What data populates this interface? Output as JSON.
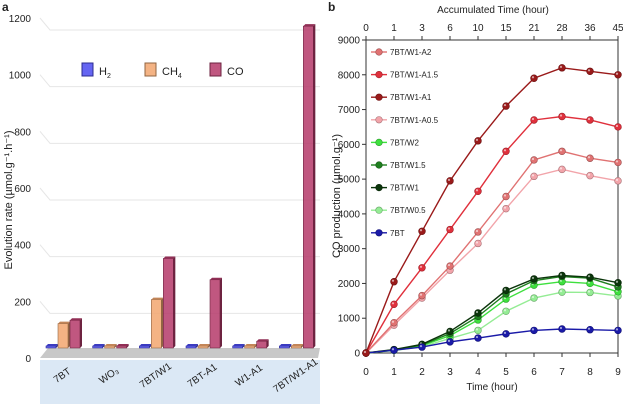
{
  "chart_data": [
    {
      "panel_label": "a",
      "type": "bar",
      "ylabel": "Evolution rate (µmol.g⁻¹.h⁻¹)",
      "ylim": [
        0,
        1200
      ],
      "yticks": [
        0,
        200,
        400,
        600,
        800,
        1000,
        1200
      ],
      "grid": true,
      "legend_placement": "top-left",
      "categories": [
        "7BT",
        "WO₃",
        "7BT/W1",
        "7BT-A1",
        "W1-A1",
        "7BT/W1-A1"
      ],
      "series": [
        {
          "name": "H₂",
          "label_base": "H",
          "label_sub": "2",
          "color": "#4a4af0",
          "values": [
            2,
            2,
            2,
            2,
            2,
            2
          ]
        },
        {
          "name": "CH₄",
          "label_base": "CH",
          "label_sub": "4",
          "color": "#f2a66e",
          "values": [
            100,
            2,
            185,
            15,
            8,
            4
          ]
        },
        {
          "name": "CO",
          "label_base": "CO",
          "label_sub": "",
          "color": "#b53a6a",
          "values": [
            112,
            3,
            330,
            255,
            38,
            1150
          ]
        }
      ]
    },
    {
      "panel_label": "b",
      "type": "line",
      "xlabel": "Time (hour)",
      "ylabel": "CO production (µmol.g⁻¹)",
      "top_xlabel": "Accumulated Time (hour)",
      "x": [
        0,
        1,
        2,
        3,
        4,
        5,
        6,
        7,
        8,
        9
      ],
      "top_xticks": [
        "0",
        "1",
        "3",
        "6",
        "10",
        "15",
        "21",
        "28",
        "36",
        "45"
      ],
      "xlim": [
        0,
        9
      ],
      "ylim": [
        0,
        9000
      ],
      "yticks": [
        0,
        1000,
        2000,
        3000,
        4000,
        5000,
        6000,
        7000,
        8000,
        9000
      ],
      "grid": false,
      "legend_placement": "top-left",
      "series": [
        {
          "name": "7BT/W1-A2",
          "color": "#e07272",
          "values": [
            0,
            870,
            1650,
            2500,
            3480,
            4500,
            5550,
            5800,
            5600,
            5480
          ]
        },
        {
          "name": "7BT/W1-A1.5",
          "color": "#e0303c",
          "values": [
            0,
            1400,
            2450,
            3550,
            4650,
            5800,
            6700,
            6800,
            6700,
            6500
          ]
        },
        {
          "name": "7BT/W1-A1",
          "color": "#9a1a1a",
          "values": [
            0,
            2050,
            3500,
            4950,
            6100,
            7100,
            7900,
            8200,
            8100,
            8000
          ]
        },
        {
          "name": "7BT/W1-A0.5",
          "color": "#f2a4aa",
          "values": [
            0,
            800,
            1580,
            2380,
            3150,
            4150,
            5080,
            5280,
            5100,
            4950
          ]
        },
        {
          "name": "7BT/W2",
          "color": "#3ee03e",
          "values": [
            0,
            80,
            210,
            500,
            950,
            1550,
            1950,
            2050,
            2000,
            1760
          ]
        },
        {
          "name": "7BT/W1.5",
          "color": "#1f7f1f",
          "values": [
            0,
            90,
            230,
            560,
            1050,
            1700,
            2080,
            2200,
            2150,
            1900
          ]
        },
        {
          "name": "7BT/W1",
          "color": "#0b350b",
          "values": [
            0,
            100,
            250,
            620,
            1150,
            1800,
            2130,
            2230,
            2180,
            2020
          ]
        },
        {
          "name": "7BT/W0.5",
          "color": "#94ec94",
          "values": [
            0,
            70,
            180,
            420,
            650,
            1200,
            1580,
            1750,
            1740,
            1640
          ]
        },
        {
          "name": "7BT",
          "color": "#1a1aa8",
          "values": [
            0,
            80,
            170,
            320,
            430,
            550,
            650,
            690,
            670,
            650
          ]
        }
      ]
    }
  ]
}
